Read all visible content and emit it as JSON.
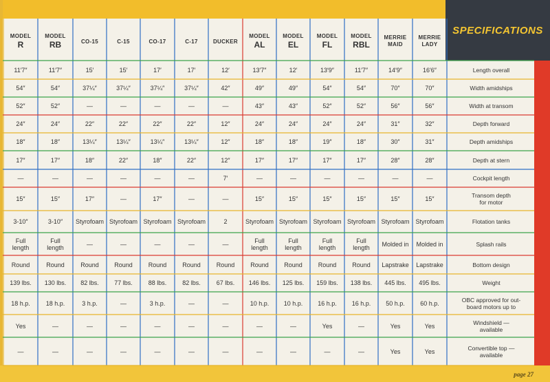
{
  "title": "SPECIFICATIONS",
  "page_number": "page 27",
  "columns": [
    {
      "top": "MODEL",
      "main": "R"
    },
    {
      "top": "MODEL",
      "main": "RB"
    },
    {
      "top": "",
      "main": "CO-15"
    },
    {
      "top": "",
      "main": "C-15"
    },
    {
      "top": "",
      "main": "CO-17"
    },
    {
      "top": "",
      "main": "C-17"
    },
    {
      "top": "",
      "main": "DUCKER"
    },
    {
      "top": "MODEL",
      "main": "AL"
    },
    {
      "top": "MODEL",
      "main": "EL"
    },
    {
      "top": "MODEL",
      "main": "FL"
    },
    {
      "top": "MODEL",
      "main": "RBL"
    },
    {
      "top": "MERRIE",
      "main": "MAID"
    },
    {
      "top": "MERRIE",
      "main": "LADY"
    }
  ],
  "rows": [
    {
      "label": "Length overall",
      "cells": [
        "11′7″",
        "11′7″",
        "15′",
        "15′",
        "17′",
        "17′",
        "12′",
        "13′7″",
        "12′",
        "13′9″",
        "11′7″",
        "14′9″",
        "16′6″"
      ]
    },
    {
      "label": "Width amidships",
      "cells": [
        "54″",
        "54″",
        "37¼″",
        "37¼″",
        "37¼″",
        "37¼″",
        "42″",
        "49″",
        "49″",
        "54″",
        "54″",
        "70″",
        "70″"
      ]
    },
    {
      "label": "Width at transom",
      "cells": [
        "52″",
        "52″",
        "—",
        "—",
        "—",
        "—",
        "—",
        "43″",
        "43″",
        "52″",
        "52″",
        "56″",
        "56″"
      ]
    },
    {
      "label": "Depth forward",
      "cells": [
        "24″",
        "24″",
        "22″",
        "22″",
        "22″",
        "22″",
        "12″",
        "24″",
        "24″",
        "24″",
        "24″",
        "31″",
        "32″"
      ]
    },
    {
      "label": "Depth amidships",
      "cells": [
        "18″",
        "18″",
        "13¼″",
        "13¼″",
        "13¼″",
        "13¼″",
        "12″",
        "18″",
        "18″",
        "19″",
        "18″",
        "30″",
        "31″"
      ]
    },
    {
      "label": "Depth at stern",
      "cells": [
        "17″",
        "17″",
        "18″",
        "22″",
        "18″",
        "22″",
        "12″",
        "17″",
        "17″",
        "17″",
        "17″",
        "28″",
        "28″"
      ]
    },
    {
      "label": "Cockpit length",
      "cells": [
        "—",
        "—",
        "—",
        "—",
        "—",
        "—",
        "7′",
        "—",
        "—",
        "—",
        "—",
        "—",
        "—"
      ]
    },
    {
      "label": [
        "Transom depth",
        "for motor"
      ],
      "cells": [
        "15″",
        "15″",
        "17″",
        "—",
        "17″",
        "—",
        "—",
        "15″",
        "15″",
        "15″",
        "15″",
        "15″",
        "15″"
      ]
    },
    {
      "label": "Flotation tanks",
      "cells": [
        "3-10″",
        "3-10″",
        "Styrofoam",
        "Styrofoam",
        "Styrofoam",
        "Styrofoam",
        "2",
        "Styrofoam",
        "Styrofoam",
        "Styrofoam",
        "Styrofoam",
        "Styrofoam",
        "Styrofoam"
      ]
    },
    {
      "label": "Splash rails",
      "cells": [
        [
          "Full",
          "length"
        ],
        [
          "Full",
          "length"
        ],
        "—",
        "—",
        "—",
        "—",
        "—",
        [
          "Full",
          "length"
        ],
        [
          "Full",
          "length"
        ],
        [
          "Full",
          "length"
        ],
        [
          "Full",
          "length"
        ],
        "Molded in",
        "Molded in"
      ]
    },
    {
      "label": "Bottom design",
      "cells": [
        "Round",
        "Round",
        "Round",
        "Round",
        "Round",
        "Round",
        "Round",
        "Round",
        "Round",
        "Round",
        "Round",
        "Lapstrake",
        "Lapstrake"
      ]
    },
    {
      "label": "Weight",
      "cells": [
        "139 lbs.",
        "130 lbs.",
        "82 lbs.",
        "77 lbs.",
        "88 lbs.",
        "82 lbs.",
        "67 lbs.",
        "146 lbs.",
        "125 lbs.",
        "159 lbs.",
        "138 lbs.",
        "445 lbs.",
        "495 lbs."
      ]
    },
    {
      "label": [
        "OBC approved for out-",
        "board motors up to"
      ],
      "cells": [
        "18 h.p.",
        "18 h.p.",
        "3 h.p.",
        "—",
        "3 h.p.",
        "—",
        "—",
        "10 h.p.",
        "10 h.p.",
        "16 h.p.",
        "16 h.p.",
        "50 h.p.",
        "60 h.p."
      ]
    },
    {
      "label": [
        "Windshield —",
        "available"
      ],
      "cells": [
        "Yes",
        "—",
        "—",
        "—",
        "—",
        "—",
        "—",
        "—",
        "—",
        "Yes",
        "—",
        "Yes",
        "Yes"
      ]
    },
    {
      "label": [
        "Convertible top —",
        "available"
      ],
      "cells": [
        "—",
        "—",
        "—",
        "—",
        "—",
        "—",
        "—",
        "—",
        "—",
        "—",
        "—",
        "Yes",
        "Yes"
      ]
    }
  ],
  "colors": {
    "accent_yellow": "#f2bd2b",
    "title_bg": "#353a42",
    "title_text": "#f4c531",
    "red_band": "#e03a28",
    "blue_rule": "#2f6fc4",
    "green_rule": "#3aa24a",
    "red_rule": "#d93a30",
    "yellow_rule": "#e6b52c"
  }
}
